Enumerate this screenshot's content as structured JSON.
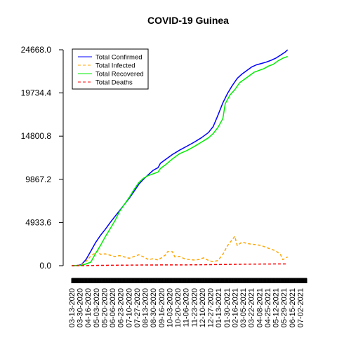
{
  "chart_data": {
    "type": "line",
    "title": "COVID-19 Guinea",
    "xlabel": "",
    "ylabel": "",
    "ylim": [
      0.0,
      24668.0
    ],
    "y_ticks": [
      "0.0",
      "4933.6",
      "9867.2",
      "14800.8",
      "19734.4",
      "24668.0"
    ],
    "x_tick_labels": [
      "03-13-2020",
      "03-30-2020",
      "04-16-2020",
      "05-03-2020",
      "05-20-2020",
      "06-06-2020",
      "06-23-2020",
      "07-10-2020",
      "07-27-2020",
      "08-13-2020",
      "08-30-2020",
      "09-16-2020",
      "10-03-2020",
      "10-20-2020",
      "11-06-2020",
      "11-23-2020",
      "12-10-2020",
      "12-27-2020",
      "01-13-2021",
      "01-30-2021",
      "02-16-2021",
      "03-05-2021",
      "03-22-2021",
      "04-08-2021",
      "04-25-2021",
      "05-12-2021",
      "05-29-2021",
      "06-15-2021",
      "07-02-2021"
    ],
    "grid": false,
    "legend_position": "top-left",
    "x_day_range": [
      0,
      490
    ],
    "series": [
      {
        "name": "Total Confirmed",
        "color": "#0000ff",
        "dash": "solid",
        "points": [
          [
            0,
            4
          ],
          [
            10,
            20
          ],
          [
            20,
            100
          ],
          [
            30,
            700
          ],
          [
            40,
            1650
          ],
          [
            50,
            2650
          ],
          [
            60,
            3450
          ],
          [
            70,
            4150
          ],
          [
            80,
            4900
          ],
          [
            90,
            5600
          ],
          [
            100,
            6300
          ],
          [
            110,
            7000
          ],
          [
            120,
            7700
          ],
          [
            130,
            8500
          ],
          [
            140,
            9300
          ],
          [
            150,
            9900
          ],
          [
            160,
            10400
          ],
          [
            170,
            10900
          ],
          [
            180,
            11200
          ],
          [
            185,
            11700
          ],
          [
            195,
            12100
          ],
          [
            210,
            12700
          ],
          [
            225,
            13200
          ],
          [
            240,
            13650
          ],
          [
            255,
            14100
          ],
          [
            270,
            14600
          ],
          [
            285,
            15200
          ],
          [
            295,
            15900
          ],
          [
            305,
            17200
          ],
          [
            315,
            18600
          ],
          [
            325,
            19700
          ],
          [
            335,
            20600
          ],
          [
            345,
            21400
          ],
          [
            355,
            21900
          ],
          [
            365,
            22300
          ],
          [
            375,
            22700
          ],
          [
            385,
            22950
          ],
          [
            395,
            23100
          ],
          [
            405,
            23250
          ],
          [
            415,
            23450
          ],
          [
            425,
            23700
          ],
          [
            435,
            24050
          ],
          [
            445,
            24400
          ],
          [
            450,
            24668
          ]
        ]
      },
      {
        "name": "Total Infected",
        "color": "#ffa500",
        "dash": "dashed",
        "points": [
          [
            0,
            4
          ],
          [
            10,
            15
          ],
          [
            20,
            80
          ],
          [
            30,
            500
          ],
          [
            40,
            1100
          ],
          [
            50,
            1500
          ],
          [
            55,
            1700
          ],
          [
            60,
            1300
          ],
          [
            70,
            1350
          ],
          [
            80,
            1200
          ],
          [
            90,
            1050
          ],
          [
            100,
            1150
          ],
          [
            110,
            1000
          ],
          [
            120,
            850
          ],
          [
            130,
            1050
          ],
          [
            140,
            1250
          ],
          [
            150,
            1000
          ],
          [
            160,
            700
          ],
          [
            170,
            800
          ],
          [
            180,
            650
          ],
          [
            195,
            1200
          ],
          [
            200,
            1600
          ],
          [
            210,
            1600
          ],
          [
            215,
            1000
          ],
          [
            225,
            1050
          ],
          [
            235,
            800
          ],
          [
            245,
            700
          ],
          [
            255,
            650
          ],
          [
            265,
            700
          ],
          [
            275,
            900
          ],
          [
            285,
            600
          ],
          [
            295,
            450
          ],
          [
            305,
            600
          ],
          [
            315,
            1300
          ],
          [
            325,
            2300
          ],
          [
            335,
            3000
          ],
          [
            340,
            3350
          ],
          [
            345,
            2300
          ],
          [
            355,
            2700
          ],
          [
            365,
            2550
          ],
          [
            375,
            2450
          ],
          [
            385,
            2400
          ],
          [
            395,
            2300
          ],
          [
            405,
            2100
          ],
          [
            415,
            1900
          ],
          [
            425,
            1700
          ],
          [
            435,
            1300
          ],
          [
            440,
            700
          ],
          [
            450,
            1000
          ]
        ]
      },
      {
        "name": "Total Recovered",
        "color": "#00ee00",
        "dash": "solid",
        "points": [
          [
            0,
            0
          ],
          [
            20,
            30
          ],
          [
            30,
            200
          ],
          [
            40,
            400
          ],
          [
            50,
            1400
          ],
          [
            60,
            2300
          ],
          [
            70,
            3300
          ],
          [
            80,
            4200
          ],
          [
            90,
            5100
          ],
          [
            100,
            6200
          ],
          [
            110,
            7000
          ],
          [
            120,
            7800
          ],
          [
            130,
            8700
          ],
          [
            140,
            9500
          ],
          [
            150,
            10000
          ],
          [
            160,
            10300
          ],
          [
            170,
            10500
          ],
          [
            180,
            10700
          ],
          [
            185,
            11100
          ],
          [
            195,
            11500
          ],
          [
            210,
            12200
          ],
          [
            225,
            12800
          ],
          [
            240,
            13150
          ],
          [
            255,
            13600
          ],
          [
            270,
            14100
          ],
          [
            285,
            14600
          ],
          [
            295,
            15100
          ],
          [
            305,
            15800
          ],
          [
            315,
            16800
          ],
          [
            320,
            18500
          ],
          [
            330,
            19500
          ],
          [
            340,
            20100
          ],
          [
            350,
            20900
          ],
          [
            360,
            21300
          ],
          [
            370,
            21700
          ],
          [
            380,
            22100
          ],
          [
            390,
            22300
          ],
          [
            400,
            22500
          ],
          [
            410,
            22800
          ],
          [
            420,
            23000
          ],
          [
            430,
            23400
          ],
          [
            440,
            23700
          ],
          [
            450,
            23900
          ]
        ]
      },
      {
        "name": "Total Deaths",
        "color": "#ff0000",
        "dash": "dashed",
        "points": [
          [
            0,
            0
          ],
          [
            30,
            10
          ],
          [
            50,
            30
          ],
          [
            100,
            60
          ],
          [
            150,
            80
          ],
          [
            200,
            90
          ],
          [
            250,
            100
          ],
          [
            300,
            130
          ],
          [
            350,
            160
          ],
          [
            400,
            190
          ],
          [
            450,
            200
          ]
        ]
      }
    ]
  }
}
